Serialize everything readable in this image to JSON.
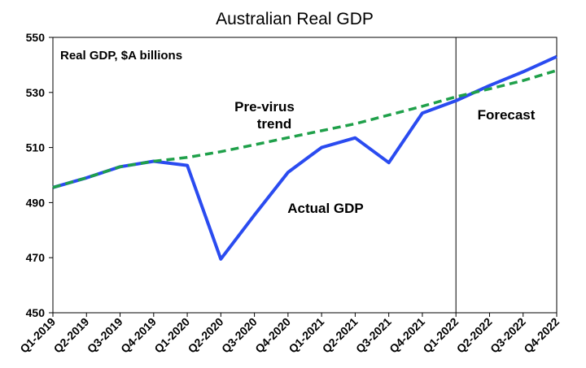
{
  "chart_data": {
    "type": "line",
    "title": "Australian Real GDP",
    "subtitle": "Real GDP, $A billions",
    "categories": [
      "Q1-2019",
      "Q2-2019",
      "Q3-2019",
      "Q4-2019",
      "Q1-2020",
      "Q2-2020",
      "Q3-2020",
      "Q4-2020",
      "Q1-2021",
      "Q2-2021",
      "Q3-2021",
      "Q4-2021",
      "Q1-2022",
      "Q2-2022",
      "Q3-2022",
      "Q4-2022"
    ],
    "ylim": [
      450,
      550
    ],
    "yticks": [
      450,
      470,
      490,
      510,
      530,
      550
    ],
    "grid": false,
    "series": [
      {
        "name": "Actual GDP",
        "color": "#2a4bf0",
        "style": "solid",
        "values": [
          495.5,
          499,
          503,
          505,
          503.5,
          469.5,
          485.5,
          501,
          510,
          513.5,
          504.5,
          522.5,
          527,
          532.5,
          537.5,
          543
        ]
      },
      {
        "name": "Pre-virus trend",
        "color": "#1fa04a",
        "style": "dashed",
        "values": [
          495.5,
          499,
          503,
          505,
          506.4,
          508.5,
          511,
          513.6,
          516.1,
          518.6,
          521.8,
          525,
          528.4,
          531.3,
          534.3,
          538
        ]
      }
    ],
    "annotations": [
      {
        "text": "Pre-virus",
        "color": "#1fa04a"
      },
      {
        "text": "trend",
        "color": "#1fa04a"
      },
      {
        "text": "Actual GDP",
        "color": "#2a4bf0"
      },
      {
        "text": "Forecast",
        "color": "#2a4bf0"
      }
    ],
    "forecast_start": "Q1-2022"
  }
}
